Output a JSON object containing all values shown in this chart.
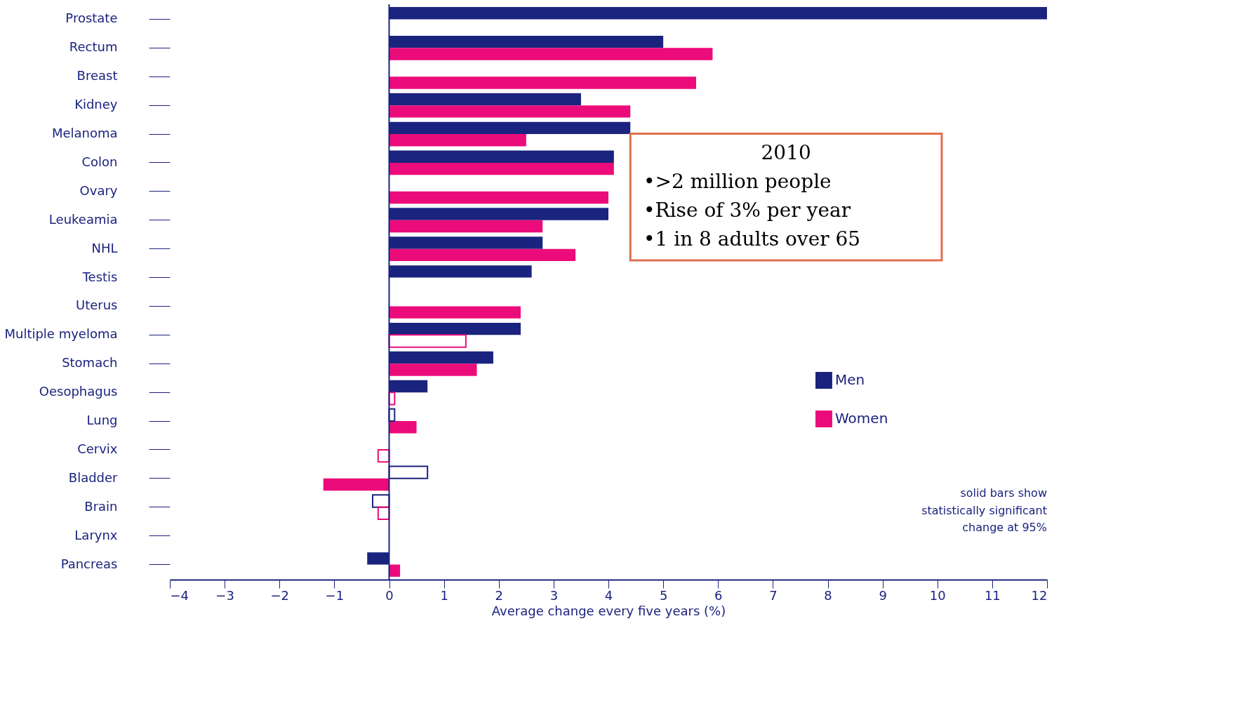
{
  "chart_data": {
    "type": "bar",
    "orientation": "horizontal",
    "xlabel": "Average change every five years (%)",
    "categories": [
      "Prostate",
      "Rectum",
      "Breast",
      "Kidney",
      "Melanoma",
      "Colon",
      "Ovary",
      "Leukeamia",
      "NHL",
      "Testis",
      "Uterus",
      "Multiple myeloma",
      "Stomach",
      "Oesophagus",
      "Lung",
      "Cervix",
      "Bladder",
      "Brain",
      "Larynx",
      "Pancreas"
    ],
    "series": [
      {
        "name": "Men",
        "color": "#1a237e",
        "values": [
          12,
          5.0,
          null,
          3.5,
          4.4,
          4.1,
          null,
          4.0,
          2.8,
          2.6,
          null,
          2.4,
          1.9,
          0.7,
          null,
          null,
          null,
          null,
          null,
          -0.4
        ]
      },
      {
        "name": "Women",
        "color": "#ec0b7a",
        "values": [
          null,
          5.9,
          5.6,
          4.4,
          2.5,
          4.1,
          4.0,
          2.8,
          3.4,
          null,
          2.4,
          null,
          1.6,
          null,
          0.5,
          null,
          -1.2,
          null,
          null,
          0.2
        ]
      },
      {
        "color": "#1a237e",
        "values": [
          null,
          null,
          null,
          null,
          null,
          null,
          null,
          null,
          null,
          null,
          null,
          null,
          null,
          null,
          0.1,
          null,
          0.7,
          -0.3,
          null,
          null
        ]
      },
      {
        "color": "#ec0b7a",
        "values": [
          null,
          null,
          null,
          null,
          null,
          null,
          null,
          null,
          null,
          null,
          null,
          1.4,
          null,
          0.1,
          null,
          -0.2,
          null,
          -0.2,
          null,
          null
        ]
      }
    ],
    "xlim": [
      -4,
      12
    ],
    "xticks": [
      -4,
      -3,
      -2,
      -1,
      0,
      1,
      2,
      3,
      4,
      5,
      6,
      7,
      8,
      9,
      10,
      11,
      12
    ],
    "ref_lines": [
      {
        "axis": "x",
        "value": 0,
        "color": "#1a237e"
      }
    ],
    "grid": false,
    "legend": "right",
    "annotations": [
      "2010\n•>2 million people\n•Rise of 3% per year\n•1 in 8 adults over 65",
      "solid bars show\nstatistically significant\nchange at 95%"
    ]
  }
}
